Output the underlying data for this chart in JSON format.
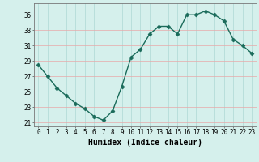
{
  "x": [
    0,
    1,
    2,
    3,
    4,
    5,
    6,
    7,
    8,
    9,
    10,
    11,
    12,
    13,
    14,
    15,
    16,
    17,
    18,
    19,
    20,
    21,
    22,
    23
  ],
  "y": [
    28.5,
    27.0,
    25.5,
    24.5,
    23.5,
    22.8,
    21.8,
    21.3,
    22.5,
    25.7,
    29.5,
    30.5,
    32.5,
    33.5,
    33.5,
    32.5,
    35.0,
    35.0,
    35.5,
    35.0,
    34.2,
    31.8,
    31.0,
    30.0
  ],
  "line_color": "#1a6b5a",
  "marker": "D",
  "marker_size": 2.5,
  "bg_color": "#d5f0ec",
  "grid_color": "#aed8d4",
  "grid_major_color": "#e8a8a8",
  "xlabel": "Humidex (Indice chaleur)",
  "xlim": [
    -0.5,
    23.5
  ],
  "ylim": [
    20.5,
    36.5
  ],
  "yticks": [
    21,
    23,
    25,
    27,
    29,
    31,
    33,
    35
  ],
  "xticks": [
    0,
    1,
    2,
    3,
    4,
    5,
    6,
    7,
    8,
    9,
    10,
    11,
    12,
    13,
    14,
    15,
    16,
    17,
    18,
    19,
    20,
    21,
    22,
    23
  ],
  "tick_fontsize": 5.5,
  "label_fontsize": 7
}
